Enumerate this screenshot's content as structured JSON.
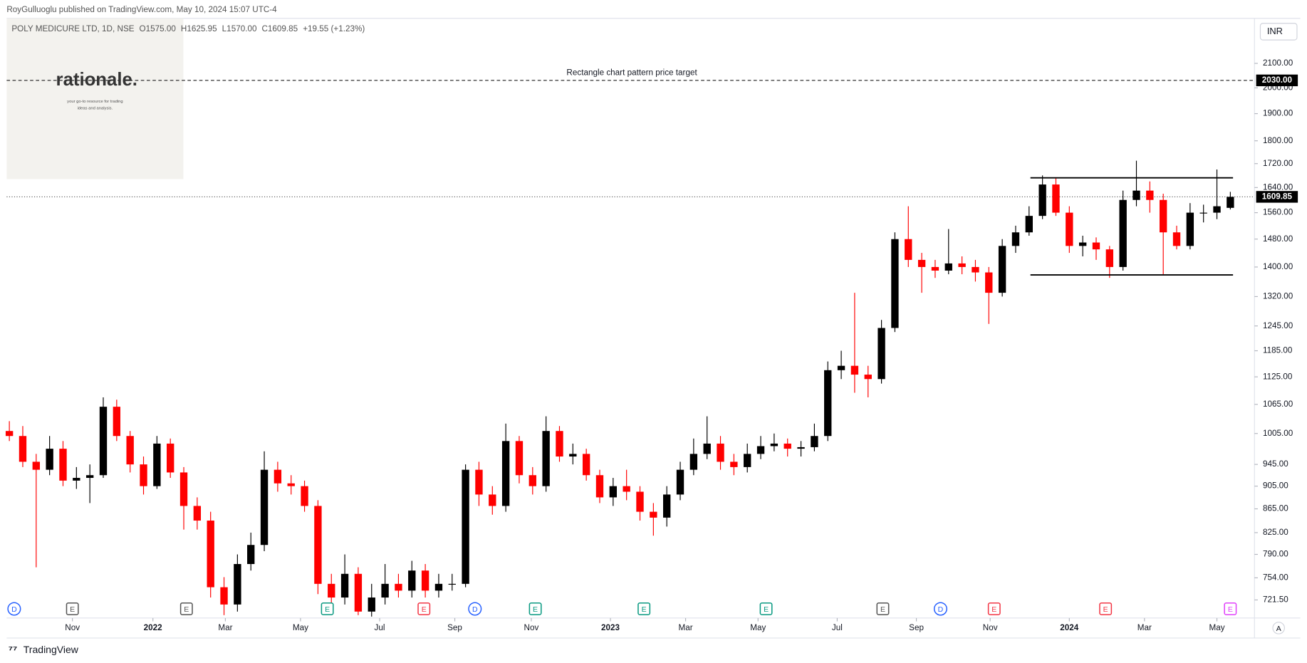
{
  "publisher": "RoyGulluoglu published on TradingView.com, May 10, 2024 15:07 UTC-4",
  "symbol_info": [
    "POLY MEDICURE LTD, 1D, NSE",
    "O1575.00",
    "H1625.95",
    "L1570.00",
    "C1609.85",
    "+19.55 (+1.23%)"
  ],
  "watermark": {
    "title": "rationale.",
    "lines": [
      "your go-to resource for trading",
      "ideas and analysis."
    ]
  },
  "currency": "INR",
  "auto_scale": "A",
  "footer": "TradingView",
  "chart_data": {
    "type": "candlestick",
    "log_scale": true,
    "up_color": "#000000",
    "down_color": "#ff0000",
    "xlim": [
      -0.2,
      92.8
    ],
    "ylim": [
      696,
      2297
    ],
    "yticks": [
      {
        "value": 721.5,
        "label": "721.50"
      },
      {
        "value": 754,
        "label": "754.00"
      },
      {
        "value": 790,
        "label": "790.00"
      },
      {
        "value": 825,
        "label": "825.00"
      },
      {
        "value": 865,
        "label": "865.00"
      },
      {
        "value": 905,
        "label": "905.00"
      },
      {
        "value": 945,
        "label": "945.00"
      },
      {
        "value": 1005,
        "label": "1005.00"
      },
      {
        "value": 1065,
        "label": "1065.00"
      },
      {
        "value": 1125,
        "label": "1125.00"
      },
      {
        "value": 1185,
        "label": "1185.00"
      },
      {
        "value": 1245,
        "label": "1245.00"
      },
      {
        "value": 1320,
        "label": "1320.00"
      },
      {
        "value": 1400,
        "label": "1400.00"
      },
      {
        "value": 1480,
        "label": "1480.00"
      },
      {
        "value": 1560,
        "label": "1560.00"
      },
      {
        "value": 1640,
        "label": "1640.00"
      },
      {
        "value": 1720,
        "label": "1720.00"
      },
      {
        "value": 1800,
        "label": "1800.00"
      },
      {
        "value": 1900,
        "label": "1900.00"
      },
      {
        "value": 2000,
        "label": "2000.00"
      },
      {
        "value": 2100,
        "label": "2100.00"
      }
    ],
    "xticks": [
      {
        "value": 4.7,
        "label": "Nov"
      },
      {
        "value": 10.7,
        "label": "2022"
      },
      {
        "value": 16.1,
        "label": "Mar"
      },
      {
        "value": 21.7,
        "label": "May"
      },
      {
        "value": 27.6,
        "label": "Jul"
      },
      {
        "value": 33.2,
        "label": "Sep"
      },
      {
        "value": 38.9,
        "label": "Nov"
      },
      {
        "value": 44.8,
        "label": "2023"
      },
      {
        "value": 50.4,
        "label": "Mar"
      },
      {
        "value": 55.8,
        "label": "May"
      },
      {
        "value": 61.7,
        "label": "Jul"
      },
      {
        "value": 67.6,
        "label": "Sep"
      },
      {
        "value": 73.1,
        "label": "Nov"
      },
      {
        "value": 79.0,
        "label": "2024"
      },
      {
        "value": 84.6,
        "label": "Mar"
      },
      {
        "value": 90.0,
        "label": "May"
      }
    ],
    "open": [
      1010,
      1000,
      950,
      935,
      975,
      915,
      920,
      925,
      1060,
      1000,
      945,
      905,
      985,
      930,
      870,
      845,
      740,
      715,
      775,
      805,
      935,
      910,
      905,
      870,
      745,
      725,
      760,
      705,
      725,
      745,
      735,
      765,
      735,
      745,
      745,
      935,
      890,
      870,
      990,
      925,
      905,
      1010,
      960,
      965,
      925,
      885,
      905,
      895,
      860,
      850,
      890,
      935,
      965,
      985,
      950,
      940,
      965,
      980,
      985,
      975,
      978,
      1000,
      1140,
      1150,
      1130,
      1120,
      1240,
      1480,
      1420,
      1400,
      1390,
      1410,
      1400,
      1385,
      1330,
      1460,
      1500,
      1550,
      1650,
      1560,
      1460,
      1470,
      1450,
      1400,
      1600,
      1630,
      1600,
      1500,
      1460,
      1560,
      1560,
      1575
    ],
    "high": [
      1030,
      1020,
      965,
      1000,
      990,
      940,
      945,
      1080,
      1075,
      1010,
      960,
      1000,
      995,
      940,
      885,
      860,
      755,
      790,
      825,
      970,
      950,
      925,
      915,
      880,
      760,
      790,
      770,
      745,
      775,
      760,
      780,
      775,
      760,
      760,
      945,
      950,
      905,
      1025,
      1000,
      940,
      1040,
      1020,
      985,
      975,
      935,
      920,
      935,
      905,
      875,
      905,
      950,
      995,
      1040,
      1000,
      965,
      985,
      1000,
      1005,
      995,
      990,
      1025,
      1160,
      1185,
      1330,
      1150,
      1260,
      1500,
      1580,
      1440,
      1420,
      1510,
      1430,
      1420,
      1400,
      1480,
      1520,
      1580,
      1680,
      1670,
      1580,
      1490,
      1485,
      1460,
      1630,
      1730,
      1660,
      1620,
      1520,
      1590,
      1585,
      1700,
      1625.95
    ],
    "low": [
      990,
      940,
      770,
      925,
      905,
      900,
      875,
      920,
      990,
      930,
      890,
      900,
      920,
      830,
      830,
      725,
      700,
      705,
      765,
      795,
      895,
      890,
      860,
      730,
      700,
      715,
      700,
      698,
      715,
      725,
      725,
      725,
      725,
      735,
      740,
      870,
      855,
      860,
      910,
      890,
      895,
      950,
      945,
      915,
      875,
      870,
      880,
      845,
      820,
      835,
      880,
      925,
      955,
      935,
      925,
      930,
      955,
      970,
      960,
      960,
      970,
      990,
      1120,
      1090,
      1080,
      1110,
      1230,
      1400,
      1330,
      1370,
      1380,
      1380,
      1360,
      1250,
      1320,
      1440,
      1490,
      1540,
      1550,
      1440,
      1430,
      1420,
      1370,
      1390,
      1580,
      1560,
      1380,
      1450,
      1450,
      1530,
      1540,
      1570
    ],
    "close": [
      1000,
      950,
      935,
      975,
      915,
      920,
      925,
      1060,
      1000,
      945,
      905,
      985,
      930,
      870,
      845,
      740,
      715,
      775,
      805,
      935,
      910,
      905,
      870,
      745,
      725,
      760,
      705,
      725,
      745,
      735,
      765,
      735,
      745,
      745,
      935,
      890,
      870,
      990,
      925,
      905,
      1010,
      960,
      965,
      925,
      885,
      905,
      895,
      860,
      850,
      890,
      935,
      965,
      985,
      950,
      940,
      965,
      980,
      985,
      975,
      978,
      1000,
      1140,
      1150,
      1130,
      1120,
      1240,
      1480,
      1420,
      1400,
      1390,
      1410,
      1400,
      1385,
      1330,
      1460,
      1500,
      1550,
      1650,
      1560,
      1460,
      1470,
      1450,
      1400,
      1600,
      1630,
      1600,
      1500,
      1460,
      1560,
      1560,
      1580,
      1609.85
    ],
    "target": {
      "label": "Rectangle chart pattern price target",
      "value": 2030,
      "value_label": "2030.00"
    },
    "last_price": {
      "value": 1609.85,
      "value_label": "1609.85"
    },
    "rectangle": {
      "top": 1672,
      "bottom": 1378,
      "start": 76.1,
      "end": 91.2
    },
    "events": [
      {
        "label": "D",
        "at": 0.36,
        "color": "#2962ff"
      },
      {
        "label": "E",
        "at": 4.7,
        "color": "#555555"
      },
      {
        "label": "E",
        "at": 13.2,
        "color": "#555555"
      },
      {
        "label": "E",
        "at": 23.7,
        "color": "#089981"
      },
      {
        "label": "E",
        "at": 30.9,
        "color": "#f23645"
      },
      {
        "label": "D",
        "at": 34.7,
        "color": "#2962ff"
      },
      {
        "label": "E",
        "at": 39.2,
        "color": "#089981"
      },
      {
        "label": "E",
        "at": 47.3,
        "color": "#089981"
      },
      {
        "label": "E",
        "at": 56.4,
        "color": "#089981"
      },
      {
        "label": "E",
        "at": 65.1,
        "color": "#555555"
      },
      {
        "label": "D",
        "at": 69.4,
        "color": "#2962ff"
      },
      {
        "label": "E",
        "at": 73.4,
        "color": "#f23645"
      },
      {
        "label": "E",
        "at": 81.7,
        "color": "#f23645"
      },
      {
        "label": "E",
        "at": 91.0,
        "color": "#e040fb"
      }
    ]
  }
}
